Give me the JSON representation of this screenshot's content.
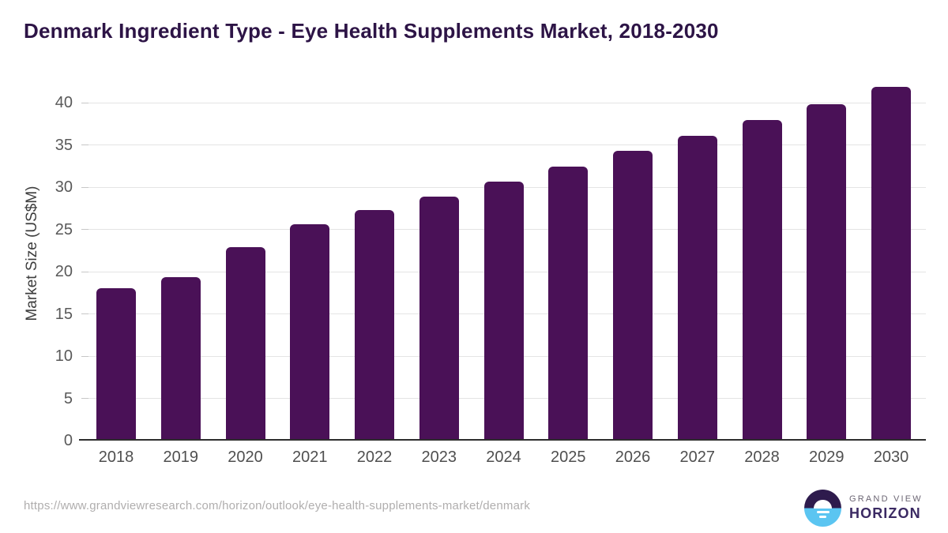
{
  "title": "Denmark Ingredient Type - Eye Health Supplements Market, 2018-2030",
  "chart_data": {
    "type": "bar",
    "title": "Denmark Ingredient Type - Eye Health Supplements Market, 2018-2030",
    "categories": [
      "2018",
      "2019",
      "2020",
      "2021",
      "2022",
      "2023",
      "2024",
      "2025",
      "2026",
      "2027",
      "2028",
      "2029",
      "2030"
    ],
    "values": [
      17.9,
      19.2,
      22.7,
      25.4,
      27.1,
      28.7,
      30.5,
      32.3,
      34.1,
      35.9,
      37.8,
      39.7,
      41.7
    ],
    "xlabel": "",
    "ylabel": "Market Size (US$M)",
    "yticks": [
      0,
      5,
      10,
      15,
      20,
      25,
      30,
      35,
      40
    ],
    "ylim": [
      0,
      43.3
    ],
    "grid": "horizontal",
    "legend": "none",
    "bar_color": "#4a1157"
  },
  "colors": {
    "title_text": "#2d1446",
    "bar_fill": "#4a1157",
    "gridline": "#e4e4e4",
    "axis_line": "#2d2d2d",
    "tick_text": "#595959",
    "logo_purple": "#2e1b4d",
    "logo_blue": "#5bc5f1"
  },
  "footer": {
    "source_url": "https://www.grandviewresearch.com/horizon/outlook/eye-health-supplements-market/denmark",
    "logo": {
      "line1": "GRAND VIEW",
      "line2": "HORIZON",
      "icon": "horizon-sunrise-icon"
    }
  }
}
